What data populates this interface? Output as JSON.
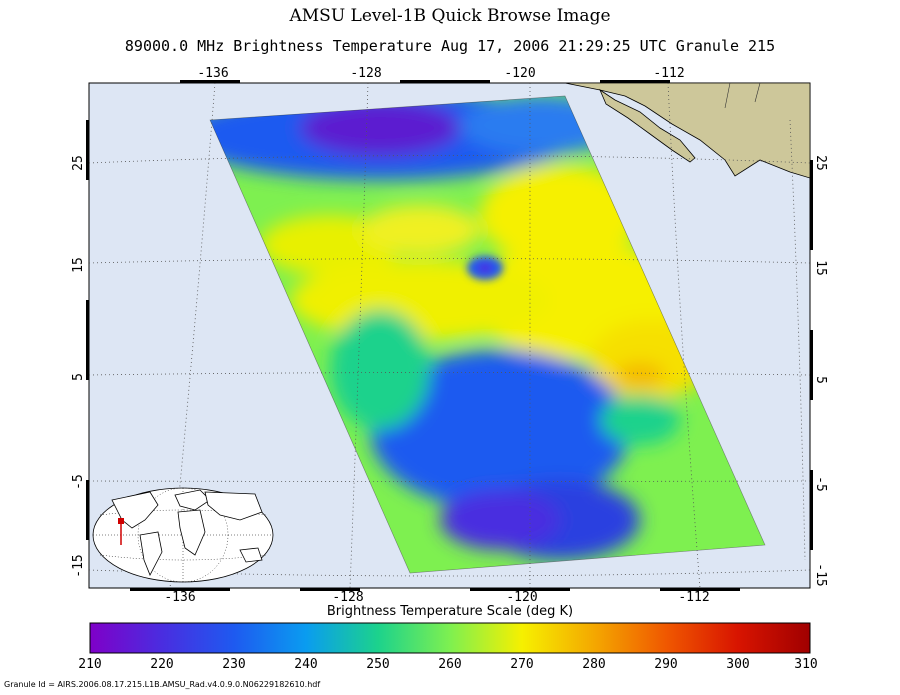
{
  "title": "AMSU Level-1B Quick Browse Image",
  "subtitle": "89000.0 MHz Brightness Temperature   Aug 17, 2006 21:29:25 UTC  Granule 215",
  "map": {
    "lon_ticks_top": [
      "-136",
      "-128",
      "-120",
      "-112"
    ],
    "lon_ticks_bottom": [
      "-136",
      "-128",
      "-120",
      "-112"
    ],
    "lat_ticks_left": [
      "25",
      "15",
      "5",
      "-5",
      "-15"
    ],
    "lat_ticks_right": [
      "25",
      "15",
      "5",
      "-5",
      "-15"
    ],
    "lon_range": [
      -139,
      -108
    ],
    "lat_range": [
      -17,
      31
    ],
    "background_color": "#dde6f4",
    "land_color": "#cdc79a",
    "grid": "dotted"
  },
  "colorbar": {
    "title": "Brightness Temperature Scale (deg K)",
    "ticks": [
      "210",
      "220",
      "230",
      "240",
      "250",
      "260",
      "270",
      "280",
      "290",
      "300",
      "310"
    ],
    "range": [
      210,
      310
    ],
    "colors": [
      "#7f00c8",
      "#4a2de0",
      "#1e5af0",
      "#0a9cf0",
      "#1cd28c",
      "#7ef050",
      "#f6f000",
      "#f4a800",
      "#f05800",
      "#d81400",
      "#a00000"
    ]
  },
  "footer": "Granule Id  =  AIRS.2006.08.17.215.L1B.AMSU_Rad.v4.0.9.0.N06229182610.hdf"
}
